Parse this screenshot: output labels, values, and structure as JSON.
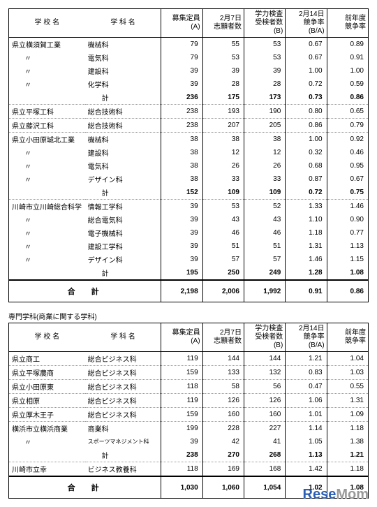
{
  "headers": {
    "school": "学 校 名",
    "dept": "学 科 名",
    "capacity": "募集定員\n(A)",
    "applicants": "2月7日\n志願者数",
    "examinees": "学力検査\n受検者数\n(B)",
    "ratio": "2月14日\n競争率\n(B/A)",
    "prev": "前年度\n競争率"
  },
  "table1": {
    "groups": [
      {
        "school": "県立横須賀工業",
        "rows": [
          {
            "dept": "機械科",
            "c": "79",
            "a": "55",
            "e": "53",
            "r": "0.67",
            "p": "0.89"
          },
          {
            "dept": "電気科",
            "c": "79",
            "a": "53",
            "e": "53",
            "r": "0.67",
            "p": "0.91"
          },
          {
            "dept": "建設科",
            "c": "39",
            "a": "39",
            "e": "39",
            "r": "1.00",
            "p": "1.00"
          },
          {
            "dept": "化学科",
            "c": "39",
            "a": "28",
            "e": "28",
            "r": "0.72",
            "p": "0.59"
          }
        ],
        "total": {
          "dept": "計",
          "c": "236",
          "a": "175",
          "e": "173",
          "r": "0.73",
          "p": "0.86"
        }
      },
      {
        "school": "県立平塚工科",
        "rows": [
          {
            "dept": "総合技術科",
            "c": "238",
            "a": "193",
            "e": "190",
            "r": "0.80",
            "p": "0.65"
          }
        ]
      },
      {
        "school": "県立藤沢工科",
        "rows": [
          {
            "dept": "総合技術科",
            "c": "238",
            "a": "207",
            "e": "205",
            "r": "0.86",
            "p": "0.79"
          }
        ]
      },
      {
        "school": "県立小田原城北工業",
        "rows": [
          {
            "dept": "機械科",
            "c": "38",
            "a": "38",
            "e": "38",
            "r": "1.00",
            "p": "0.92"
          },
          {
            "dept": "建設科",
            "c": "38",
            "a": "12",
            "e": "12",
            "r": "0.32",
            "p": "0.46"
          },
          {
            "dept": "電気科",
            "c": "38",
            "a": "26",
            "e": "26",
            "r": "0.68",
            "p": "0.95"
          },
          {
            "dept": "デザイン科",
            "c": "38",
            "a": "33",
            "e": "33",
            "r": "0.87",
            "p": "0.67"
          }
        ],
        "total": {
          "dept": "計",
          "c": "152",
          "a": "109",
          "e": "109",
          "r": "0.72",
          "p": "0.75"
        }
      },
      {
        "school": "川崎市立川崎総合科学",
        "rows": [
          {
            "dept": "情報工学科",
            "c": "39",
            "a": "53",
            "e": "52",
            "r": "1.33",
            "p": "1.46"
          },
          {
            "dept": "総合電気科",
            "c": "39",
            "a": "43",
            "e": "43",
            "r": "1.10",
            "p": "0.90"
          },
          {
            "dept": "電子機械科",
            "c": "39",
            "a": "46",
            "e": "46",
            "r": "1.18",
            "p": "0.77"
          },
          {
            "dept": "建設工学科",
            "c": "39",
            "a": "51",
            "e": "51",
            "r": "1.31",
            "p": "1.13"
          },
          {
            "dept": "デザイン科",
            "c": "39",
            "a": "57",
            "e": "57",
            "r": "1.46",
            "p": "1.15"
          }
        ],
        "total": {
          "dept": "計",
          "c": "195",
          "a": "250",
          "e": "249",
          "r": "1.28",
          "p": "1.08"
        }
      }
    ],
    "grand": {
      "label": "合　計",
      "c": "2,198",
      "a": "2,006",
      "e": "1,992",
      "r": "0.91",
      "p": "0.86"
    }
  },
  "caption2": "専門学科(商業に関する学科)",
  "table2": {
    "groups": [
      {
        "school": "県立商工",
        "rows": [
          {
            "dept": "総合ビジネス科",
            "c": "119",
            "a": "144",
            "e": "144",
            "r": "1.21",
            "p": "1.04"
          }
        ]
      },
      {
        "school": "県立平塚農商",
        "rows": [
          {
            "dept": "総合ビジネス科",
            "c": "159",
            "a": "133",
            "e": "132",
            "r": "0.83",
            "p": "1.03"
          }
        ]
      },
      {
        "school": "県立小田原東",
        "rows": [
          {
            "dept": "総合ビジネス科",
            "c": "118",
            "a": "58",
            "e": "56",
            "r": "0.47",
            "p": "0.55"
          }
        ]
      },
      {
        "school": "県立相原",
        "rows": [
          {
            "dept": "総合ビジネス科",
            "c": "119",
            "a": "126",
            "e": "126",
            "r": "1.06",
            "p": "1.31"
          }
        ]
      },
      {
        "school": "県立厚木王子",
        "rows": [
          {
            "dept": "総合ビジネス科",
            "c": "159",
            "a": "160",
            "e": "160",
            "r": "1.01",
            "p": "1.09"
          }
        ]
      },
      {
        "school": "横浜市立横浜商業",
        "rows": [
          {
            "dept": "商業科",
            "c": "199",
            "a": "228",
            "e": "227",
            "r": "1.14",
            "p": "1.18"
          },
          {
            "dept": "スポーツマネジメント科",
            "c": "39",
            "a": "42",
            "e": "41",
            "r": "1.05",
            "p": "1.38"
          }
        ],
        "total": {
          "dept": "計",
          "c": "238",
          "a": "270",
          "e": "268",
          "r": "1.13",
          "p": "1.21"
        }
      },
      {
        "school": "川崎市立幸",
        "rows": [
          {
            "dept": "ビジネス教養科",
            "c": "118",
            "a": "169",
            "e": "168",
            "r": "1.42",
            "p": "1.18"
          }
        ]
      }
    ],
    "grand": {
      "label": "合　計",
      "c": "1,030",
      "a": "1,060",
      "e": "1,054",
      "r": "1.02",
      "p": "1.08"
    }
  },
  "logo": {
    "part1": "Rese",
    "part2": "Mom"
  }
}
